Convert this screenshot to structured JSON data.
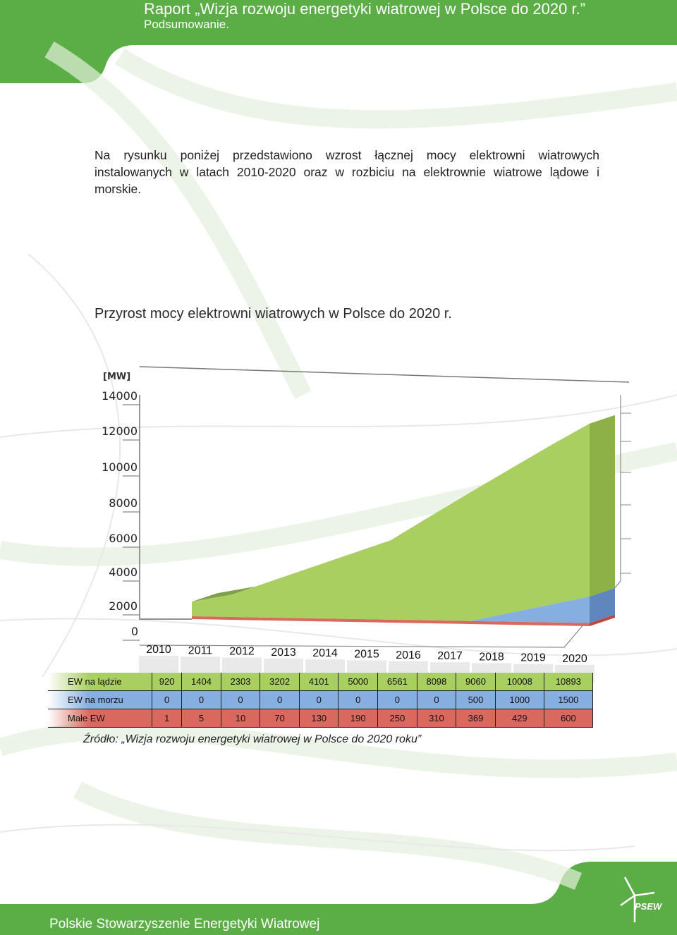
{
  "header": {
    "title": "Raport „Wizja rozwoju energetyki wiatrowej w Polsce do 2020 r.”",
    "subtitle": "Podsumowanie."
  },
  "intro": "Na rysunku poniżej przedstawiono wzrost łącznej mocy elektrowni wiatrowych instalowanych w latach 2010-2020 oraz w rozbiciu na elektrownie wiatrowe lądowe i morskie.",
  "chart_data": {
    "type": "area",
    "title": "Przyrost mocy elektrowni wiatrowych w Polsce do 2020 r.",
    "ylabel": "[MW]",
    "xlabel": "",
    "ylim": [
      0,
      14000
    ],
    "yticks": [
      "0",
      "2000",
      "4000",
      "6000",
      "8000",
      "10000",
      "12000",
      "14000"
    ],
    "categories": [
      "2010",
      "2011",
      "2012",
      "2013",
      "2014",
      "2015",
      "2016",
      "2017",
      "2018",
      "2019",
      "2020"
    ],
    "stacked": true,
    "series": [
      {
        "name": "EW na lądzie",
        "color": "#a9cf60",
        "values": [
          920,
          1404,
          2303,
          3202,
          4101,
          5000,
          6561,
          8098,
          9060,
          10008,
          10893
        ]
      },
      {
        "name": "EW na morzu",
        "color": "#86aee0",
        "values": [
          0,
          0,
          0,
          0,
          0,
          0,
          0,
          0,
          500,
          1000,
          1500
        ]
      },
      {
        "name": "Małe EW",
        "color": "#d9695f",
        "values": [
          1,
          5,
          10,
          70,
          130,
          190,
          250,
          310,
          369,
          429,
          600
        ]
      }
    ]
  },
  "source": "Źródło: „Wizja rozwoju energetyki wiatrowej w Polsce do 2020 roku”",
  "footer": "Polskie Stowarzyszenie Energetyki Wiatrowej",
  "logo_text": "PSEW",
  "colors": {
    "brand_green": "#5aae45",
    "land": "#a9cf60",
    "sea": "#86aee0",
    "small": "#d9695f"
  }
}
